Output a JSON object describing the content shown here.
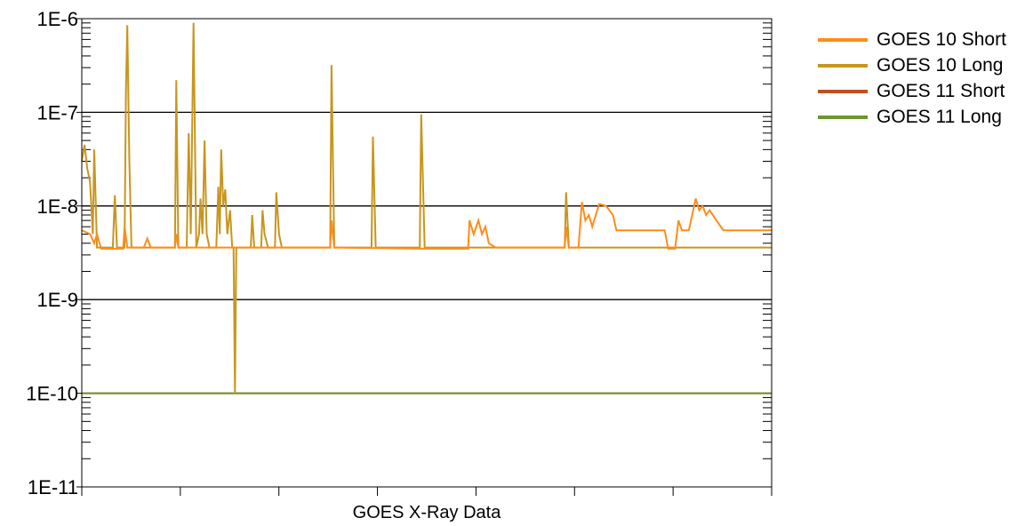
{
  "chart_data": {
    "type": "line",
    "title": "",
    "xlabel": "GOES X-Ray Data",
    "ylabel": "",
    "yscale": "log",
    "ylim": [
      1e-11,
      1e-06
    ],
    "xlim": [
      0,
      1
    ],
    "y_tick_labels": [
      "1E-6",
      "1E-7",
      "1E-8",
      "1E-9",
      "1E-10",
      "1E-11"
    ],
    "grid": "horizontal major gridlines",
    "legend_position": "right",
    "series": [
      {
        "name": "GOES 10 Short",
        "color": "#ff8c1a",
        "points": [
          [
            0.0,
            5.5e-09
          ],
          [
            0.012,
            5e-09
          ],
          [
            0.018,
            4e-09
          ],
          [
            0.022,
            5e-09
          ],
          [
            0.028,
            3.5e-09
          ],
          [
            0.06,
            3.5e-09
          ],
          [
            0.062,
            6e-09
          ],
          [
            0.066,
            3.6e-09
          ],
          [
            0.09,
            3.6e-09
          ],
          [
            0.095,
            4.5e-09
          ],
          [
            0.1,
            3.6e-09
          ],
          [
            0.135,
            3.6e-09
          ],
          [
            0.137,
            5e-09
          ],
          [
            0.14,
            3.6e-09
          ],
          [
            0.2,
            3.6e-09
          ],
          [
            0.36,
            3.6e-09
          ],
          [
            0.362,
            7e-09
          ],
          [
            0.366,
            3.6e-09
          ],
          [
            0.49,
            3.5e-09
          ],
          [
            0.56,
            3.5e-09
          ],
          [
            0.562,
            7e-09
          ],
          [
            0.568,
            5e-09
          ],
          [
            0.575,
            7e-09
          ],
          [
            0.58,
            5e-09
          ],
          [
            0.585,
            6e-09
          ],
          [
            0.59,
            4e-09
          ],
          [
            0.6,
            3.6e-09
          ],
          [
            0.7,
            3.6e-09
          ],
          [
            0.702,
            6e-09
          ],
          [
            0.706,
            3.6e-09
          ],
          [
            0.72,
            3.6e-09
          ],
          [
            0.725,
            1.1e-08
          ],
          [
            0.73,
            7e-09
          ],
          [
            0.735,
            8e-09
          ],
          [
            0.74,
            6e-09
          ],
          [
            0.75,
            1.05e-08
          ],
          [
            0.76,
            1e-08
          ],
          [
            0.77,
            8e-09
          ],
          [
            0.775,
            5.5e-09
          ],
          [
            0.845,
            5.5e-09
          ],
          [
            0.85,
            3.5e-09
          ],
          [
            0.86,
            3.5e-09
          ],
          [
            0.865,
            7e-09
          ],
          [
            0.87,
            5.5e-09
          ],
          [
            0.88,
            5.5e-09
          ],
          [
            0.89,
            1.2e-08
          ],
          [
            0.895,
            9e-09
          ],
          [
            0.9,
            1e-08
          ],
          [
            0.905,
            8e-09
          ],
          [
            0.91,
            9e-09
          ],
          [
            0.92,
            7e-09
          ],
          [
            0.93,
            5.5e-09
          ],
          [
            1.0,
            5.5e-09
          ]
        ]
      },
      {
        "name": "GOES 10 Long",
        "color": "#c8961e",
        "points": [
          [
            0.0,
            3e-08
          ],
          [
            0.004,
            4.5e-08
          ],
          [
            0.008,
            2.5e-08
          ],
          [
            0.012,
            1.8e-08
          ],
          [
            0.016,
            5e-09
          ],
          [
            0.018,
            4e-08
          ],
          [
            0.022,
            3.6e-09
          ],
          [
            0.045,
            3.6e-09
          ],
          [
            0.048,
            1.3e-08
          ],
          [
            0.051,
            3.6e-09
          ],
          [
            0.062,
            3.6e-09
          ],
          [
            0.064,
            1.8e-07
          ],
          [
            0.066,
            8.5e-07
          ],
          [
            0.069,
            3e-08
          ],
          [
            0.072,
            3.6e-09
          ],
          [
            0.135,
            3.6e-09
          ],
          [
            0.137,
            2.2e-07
          ],
          [
            0.14,
            3.6e-09
          ],
          [
            0.152,
            3.6e-09
          ],
          [
            0.155,
            6e-08
          ],
          [
            0.158,
            5e-09
          ],
          [
            0.162,
            9e-07
          ],
          [
            0.166,
            3.6e-09
          ],
          [
            0.17,
            5e-09
          ],
          [
            0.172,
            1.2e-08
          ],
          [
            0.175,
            5e-09
          ],
          [
            0.178,
            5e-08
          ],
          [
            0.181,
            5e-09
          ],
          [
            0.185,
            3.6e-09
          ],
          [
            0.195,
            3.6e-09
          ],
          [
            0.198,
            1.6e-08
          ],
          [
            0.2,
            5e-09
          ],
          [
            0.202,
            4e-08
          ],
          [
            0.205,
            1e-08
          ],
          [
            0.208,
            1.5e-08
          ],
          [
            0.211,
            5e-09
          ],
          [
            0.215,
            9e-09
          ],
          [
            0.218,
            3.6e-09
          ],
          [
            0.22,
            3.6e-09
          ],
          [
            0.222,
            1e-10
          ],
          [
            0.224,
            3.6e-09
          ],
          [
            0.245,
            3.6e-09
          ],
          [
            0.247,
            8e-09
          ],
          [
            0.25,
            3.6e-09
          ],
          [
            0.26,
            3.6e-09
          ],
          [
            0.262,
            9e-09
          ],
          [
            0.265,
            5e-09
          ],
          [
            0.27,
            3.6e-09
          ],
          [
            0.28,
            3.6e-09
          ],
          [
            0.282,
            1.4e-08
          ],
          [
            0.286,
            5e-09
          ],
          [
            0.29,
            3.6e-09
          ],
          [
            0.36,
            3.6e-09
          ],
          [
            0.362,
            3.2e-07
          ],
          [
            0.366,
            3.6e-09
          ],
          [
            0.42,
            3.6e-09
          ],
          [
            0.422,
            5.5e-08
          ],
          [
            0.426,
            3.6e-09
          ],
          [
            0.49,
            3.6e-09
          ],
          [
            0.492,
            9.5e-08
          ],
          [
            0.497,
            3.6e-09
          ],
          [
            0.7,
            3.6e-09
          ],
          [
            0.702,
            1.4e-08
          ],
          [
            0.706,
            3.6e-09
          ],
          [
            1.0,
            3.6e-09
          ]
        ]
      },
      {
        "name": "GOES 11 Short",
        "color": "#c0501e",
        "points": [
          [
            0.0,
            1e-10
          ],
          [
            1.0,
            1e-10
          ]
        ]
      },
      {
        "name": "GOES 11 Long",
        "color": "#6e962e",
        "points": [
          [
            0.0,
            1e-10
          ],
          [
            1.0,
            1e-10
          ]
        ]
      }
    ]
  }
}
